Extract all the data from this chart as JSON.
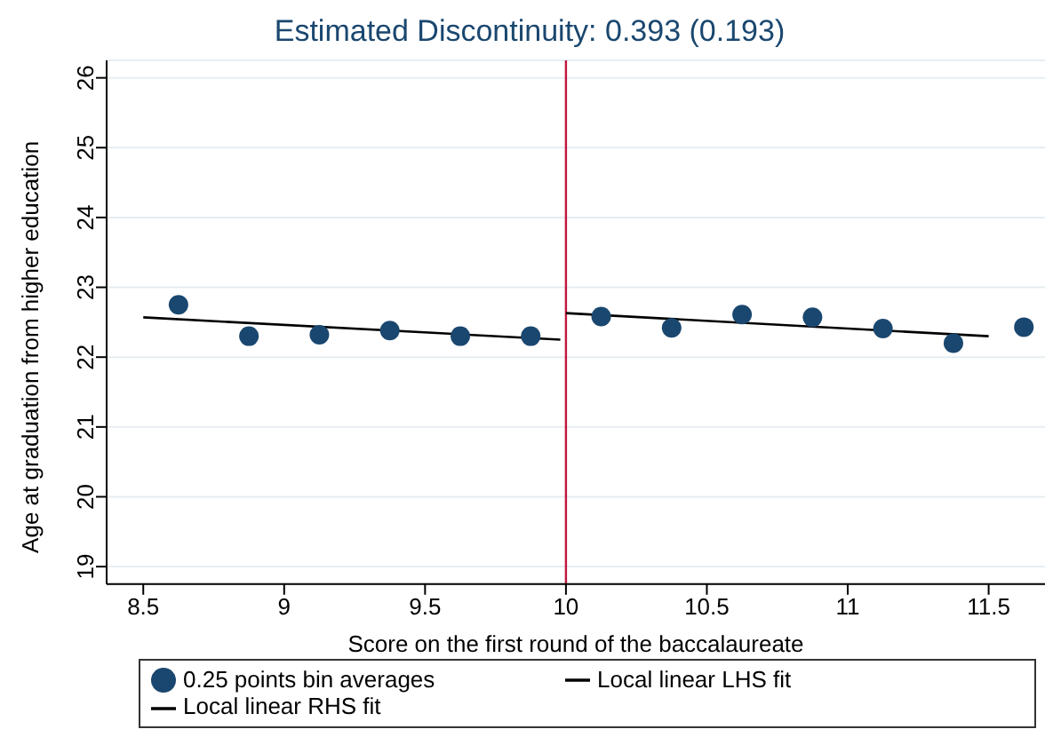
{
  "chart_data": {
    "type": "scatter",
    "title": "Estimated Discontinuity: 0.393 (0.193)",
    "xlabel": "Score on the first round of the baccalaureate",
    "ylabel": "Age at graduation from higher education",
    "series": [
      {
        "name": "0.25 points bin averages",
        "color": "#1a476f",
        "marker": "circle",
        "x": [
          8.625,
          8.875,
          9.125,
          9.375,
          9.625,
          9.875,
          10.125,
          10.375,
          10.625,
          10.875,
          11.125,
          11.375,
          11.625
        ],
        "values": [
          22.75,
          22.3,
          22.32,
          22.38,
          22.3,
          22.3,
          22.58,
          22.42,
          22.61,
          22.57,
          22.41,
          22.2,
          22.43
        ]
      },
      {
        "name": "Local linear RHS fit",
        "type": "line",
        "color": "#000000",
        "marker": "none",
        "x": [
          10,
          11.5
        ],
        "values": [
          22.63,
          22.3
        ]
      },
      {
        "name": "Local linear LHS fit",
        "type": "line",
        "color": "#000000",
        "marker": "none",
        "x": [
          8.5,
          9.98
        ],
        "values": [
          22.57,
          22.25
        ]
      }
    ],
    "xlim": [
      8.37,
      11.7
    ],
    "xticks": [
      8.5,
      9,
      9.5,
      10,
      10.5,
      11,
      11.5
    ],
    "ylim": [
      18.75,
      26.25
    ],
    "yticks": [
      19,
      20,
      21,
      22,
      23,
      24,
      25,
      26
    ],
    "ref_lines": [
      {
        "axis": "x",
        "value": 10,
        "color": "#c0143c"
      }
    ],
    "grid": "y",
    "legend": "bottom"
  }
}
